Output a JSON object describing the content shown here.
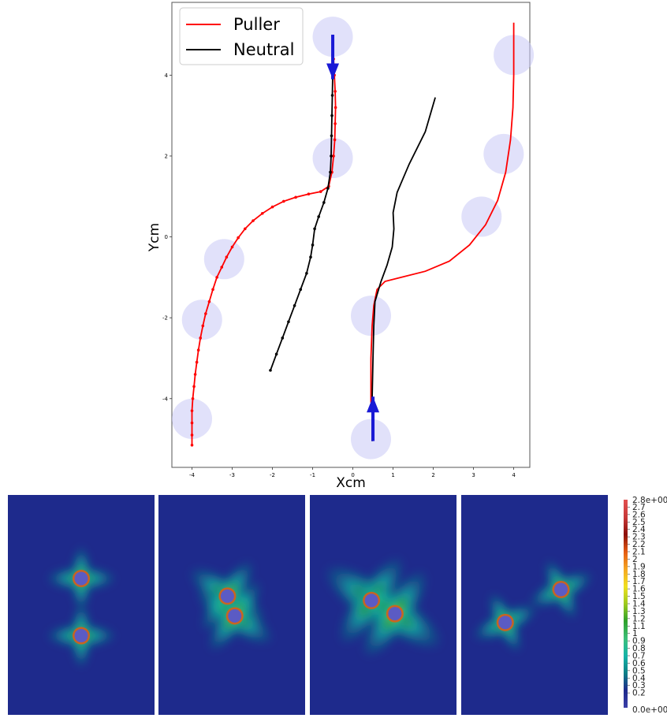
{
  "chart_data": {
    "type": "line",
    "xlabel": "Xcm",
    "ylabel": "Ycm",
    "xlim": [
      -4.5,
      4.4
    ],
    "ylim": [
      -5.7,
      5.8
    ],
    "x_ticks": [
      "-4",
      "-3",
      "-2",
      "-1",
      "0",
      "1",
      "2",
      "3",
      "4"
    ],
    "y_ticks": [
      "-4",
      "-2",
      "0",
      "2",
      "4"
    ],
    "legend": {
      "placement": "top-left",
      "entries": [
        "Puller",
        "Neutral"
      ]
    },
    "series": [
      {
        "name": "Puller",
        "color": "#ff0000",
        "markers": true,
        "points": [
          [
            -4.0,
            -5.15
          ],
          [
            -4.0,
            -4.9
          ],
          [
            -4.0,
            -4.6
          ],
          [
            -4.0,
            -4.3
          ],
          [
            -3.98,
            -4.0
          ],
          [
            -3.95,
            -3.7
          ],
          [
            -3.92,
            -3.4
          ],
          [
            -3.88,
            -3.1
          ],
          [
            -3.84,
            -2.8
          ],
          [
            -3.79,
            -2.5
          ],
          [
            -3.73,
            -2.2
          ],
          [
            -3.66,
            -1.9
          ],
          [
            -3.57,
            -1.6
          ],
          [
            -3.48,
            -1.3
          ],
          [
            -3.38,
            -1.0
          ],
          [
            -3.26,
            -0.75
          ],
          [
            -3.14,
            -0.5
          ],
          [
            -3.0,
            -0.25
          ],
          [
            -2.85,
            -0.02
          ],
          [
            -2.68,
            0.2
          ],
          [
            -2.48,
            0.4
          ],
          [
            -2.25,
            0.58
          ],
          [
            -2.0,
            0.74
          ],
          [
            -1.72,
            0.88
          ],
          [
            -1.42,
            0.98
          ],
          [
            -1.1,
            1.06
          ],
          [
            -0.8,
            1.12
          ],
          [
            -0.6,
            1.25
          ],
          [
            -0.52,
            1.6
          ],
          [
            -0.48,
            2.0
          ],
          [
            -0.45,
            2.4
          ],
          [
            -0.44,
            2.8
          ],
          [
            -0.43,
            3.2
          ],
          [
            -0.44,
            3.6
          ],
          [
            -0.46,
            4.0
          ],
          [
            -0.48,
            4.4
          ],
          [
            -0.5,
            4.8
          ],
          [
            -0.5,
            4.95
          ]
        ]
      },
      {
        "name": "Neutral",
        "color": "#000000",
        "markers": true,
        "points": [
          [
            -2.05,
            -3.3
          ],
          [
            -1.9,
            -2.9
          ],
          [
            -1.75,
            -2.5
          ],
          [
            -1.6,
            -2.1
          ],
          [
            -1.45,
            -1.7
          ],
          [
            -1.3,
            -1.3
          ],
          [
            -1.15,
            -0.9
          ],
          [
            -1.05,
            -0.5
          ],
          [
            -1.0,
            -0.2
          ],
          [
            -0.95,
            0.2
          ],
          [
            -0.85,
            0.5
          ],
          [
            -0.72,
            0.85
          ],
          [
            -0.62,
            1.2
          ],
          [
            -0.56,
            1.6
          ],
          [
            -0.54,
            2.0
          ],
          [
            -0.53,
            2.5
          ],
          [
            -0.52,
            3.0
          ],
          [
            -0.51,
            3.5
          ],
          [
            -0.5,
            4.0
          ],
          [
            -0.5,
            4.5
          ],
          [
            -0.5,
            4.95
          ]
        ]
      },
      {
        "name": "Puller",
        "color": "#ff0000",
        "markers": false,
        "points": [
          [
            0.45,
            -4.1
          ],
          [
            0.45,
            -3.0
          ],
          [
            0.48,
            -2.2
          ],
          [
            0.52,
            -1.7
          ],
          [
            0.6,
            -1.3
          ],
          [
            0.8,
            -1.1
          ],
          [
            1.2,
            -1.0
          ],
          [
            1.8,
            -0.85
          ],
          [
            2.4,
            -0.6
          ],
          [
            2.9,
            -0.2
          ],
          [
            3.3,
            0.3
          ],
          [
            3.6,
            0.9
          ],
          [
            3.8,
            1.6
          ],
          [
            3.92,
            2.4
          ],
          [
            3.98,
            3.2
          ],
          [
            4.0,
            4.0
          ],
          [
            4.0,
            4.8
          ],
          [
            4.0,
            5.3
          ]
        ]
      },
      {
        "name": "Neutral",
        "color": "#000000",
        "markers": false,
        "points": [
          [
            0.48,
            -5.05
          ],
          [
            0.48,
            -4.0
          ],
          [
            0.5,
            -3.0
          ],
          [
            0.52,
            -2.2
          ],
          [
            0.55,
            -1.6
          ],
          [
            0.7,
            -1.1
          ],
          [
            0.85,
            -0.7
          ],
          [
            0.98,
            -0.25
          ],
          [
            1.02,
            0.2
          ],
          [
            1.0,
            0.6
          ],
          [
            1.1,
            1.1
          ],
          [
            1.4,
            1.8
          ],
          [
            1.8,
            2.6
          ],
          [
            2.05,
            3.45
          ]
        ]
      }
    ],
    "circles": [
      [
        -0.5,
        4.95
      ],
      [
        -0.5,
        1.95
      ],
      [
        -3.2,
        -0.55
      ],
      [
        -3.75,
        -2.05
      ],
      [
        -4.0,
        -4.5
      ],
      [
        4.0,
        4.5
      ],
      [
        3.75,
        2.05
      ],
      [
        3.2,
        0.5
      ],
      [
        0.45,
        -1.95
      ],
      [
        0.45,
        -5.0
      ]
    ],
    "arrows": [
      {
        "x": -0.5,
        "y_from": 5.0,
        "y_to": 3.9,
        "direction": "down",
        "color": "#1a1ad6"
      },
      {
        "x": 0.5,
        "y_from": -5.05,
        "y_to": -3.95,
        "direction": "up",
        "color": "#1a1ad6"
      }
    ],
    "heatmap_panels": [
      {
        "swimmers": [
          [
            0.5,
            0.38
          ],
          [
            0.5,
            0.64
          ]
        ],
        "orientation": "vertical"
      },
      {
        "swimmers": [
          [
            0.47,
            0.46
          ],
          [
            0.52,
            0.55
          ]
        ],
        "orientation": "diag"
      },
      {
        "swimmers": [
          [
            0.42,
            0.48
          ],
          [
            0.58,
            0.54
          ]
        ],
        "orientation": "wide"
      },
      {
        "swimmers": [
          [
            0.3,
            0.58
          ],
          [
            0.68,
            0.43
          ]
        ],
        "orientation": "split"
      }
    ],
    "colorbar": {
      "min": 0.0,
      "max": 2.8,
      "top_label": "2.8e+00",
      "bottom_label": "0.0e+00",
      "tick_labels": [
        "2.7",
        "2.6",
        "2.5",
        "2.4",
        "2.3",
        "2.2",
        "2.1",
        "2",
        "1.9",
        "1.8",
        "1.7",
        "1.6",
        "1.5",
        "1.4",
        "1.3",
        "1.2",
        "1.1",
        "1",
        "0.9",
        "0.8",
        "0.7",
        "0.6",
        "0.5",
        "0.4",
        "0.3",
        "0.2"
      ],
      "colors": [
        "#3b3fa8",
        "#1e2a8c",
        "#0e7f86",
        "#15b4a8",
        "#3dbf7a",
        "#2ea02a",
        "#9ecb1e",
        "#f0e020",
        "#f5a623",
        "#e35a12",
        "#8b0f0b",
        "#c83a3a",
        "#e25050"
      ]
    }
  }
}
